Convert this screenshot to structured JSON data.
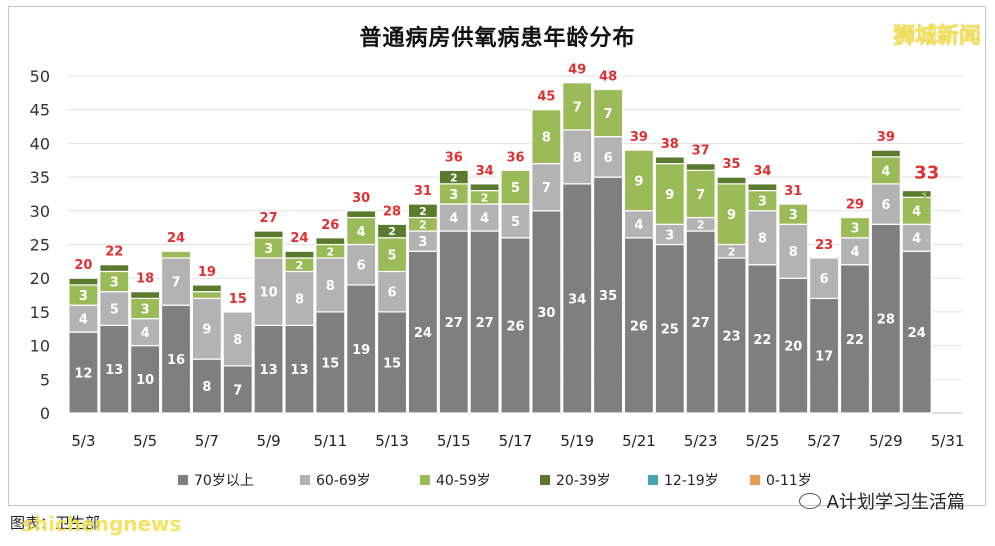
{
  "watermark_top_right": "狮城新闻",
  "watermark_bottom_right": "A计划学习生活篇",
  "watermark_bottom_left": "shichengnews",
  "source_note": "图表：卫生部",
  "colors": {
    "70+": "#7f7f7f",
    "60-69": "#b3b3b3",
    "40-59": "#9bbb59",
    "20-39": "#5a7a2e",
    "12-19": "#4aa3b5",
    "0-11": "#e89a52",
    "total_label": "#e03030"
  },
  "chart_data": {
    "type": "bar",
    "stacked": true,
    "title": "普通病房供氧病患年龄分布",
    "xlabel": "",
    "ylabel": "",
    "ylim": [
      0,
      50
    ],
    "yticks": [
      0,
      5,
      10,
      15,
      20,
      25,
      30,
      35,
      40,
      45,
      50
    ],
    "grid": true,
    "legend_position": "bottom",
    "categories": [
      "5/3",
      "5/4",
      "5/5",
      "5/6",
      "5/7",
      "5/8",
      "5/9",
      "5/10",
      "5/11",
      "5/12",
      "5/13",
      "5/14",
      "5/15",
      "5/16",
      "5/17",
      "5/18",
      "5/19",
      "5/20",
      "5/21",
      "5/22",
      "5/23",
      "5/24",
      "5/25",
      "5/26",
      "5/27",
      "5/28",
      "5/29",
      "5/30",
      "5/31"
    ],
    "xtick_labels": [
      "5/3",
      "",
      "5/5",
      "",
      "5/7",
      "",
      "5/9",
      "",
      "5/11",
      "",
      "5/13",
      "",
      "5/15",
      "",
      "5/17",
      "",
      "5/19",
      "",
      "5/21",
      "",
      "5/23",
      "",
      "5/25",
      "",
      "5/27",
      "",
      "5/29",
      "",
      "5/31"
    ],
    "series": [
      {
        "name": "70岁以上",
        "key": "70+",
        "values": [
          12,
          13,
          10,
          16,
          8,
          7,
          13,
          13,
          15,
          19,
          15,
          24,
          27,
          27,
          26,
          30,
          34,
          35,
          26,
          25,
          27,
          23,
          22,
          20,
          17,
          22,
          28,
          24,
          null
        ]
      },
      {
        "name": "60-69岁",
        "key": "60-69",
        "values": [
          4,
          5,
          4,
          7,
          9,
          8,
          10,
          8,
          8,
          6,
          6,
          3,
          4,
          4,
          5,
          7,
          8,
          6,
          4,
          3,
          2,
          2,
          8,
          8,
          6,
          4,
          6,
          4,
          null
        ]
      },
      {
        "name": "40-59岁",
        "key": "40-59",
        "values": [
          3,
          3,
          3,
          1,
          1,
          0,
          3,
          2,
          2,
          4,
          5,
          2,
          3,
          2,
          5,
          8,
          7,
          7,
          9,
          9,
          7,
          9,
          3,
          3,
          0,
          3,
          4,
          4,
          null
        ]
      },
      {
        "name": "20-39岁",
        "key": "20-39",
        "values": [
          1,
          1,
          1,
          0,
          1,
          0,
          1,
          1,
          1,
          1,
          2,
          2,
          2,
          1,
          0,
          0,
          0,
          0,
          0,
          1,
          1,
          1,
          1,
          0,
          0,
          0,
          1,
          1,
          null
        ]
      },
      {
        "name": "12-19岁",
        "key": "12-19",
        "values": [
          0,
          0,
          0,
          0,
          0,
          0,
          0,
          0,
          0,
          0,
          0,
          0,
          0,
          0,
          0,
          0,
          0,
          0,
          0,
          0,
          0,
          0,
          0,
          0,
          0,
          0,
          0,
          0,
          null
        ]
      },
      {
        "name": "0-11岁",
        "key": "0-11",
        "values": [
          0,
          0,
          0,
          0,
          0,
          0,
          0,
          0,
          0,
          0,
          0,
          0,
          0,
          0,
          0,
          0,
          0,
          0,
          0,
          0,
          0,
          0,
          0,
          0,
          0,
          0,
          0,
          0,
          null
        ]
      }
    ],
    "totals": [
      20,
      22,
      18,
      24,
      19,
      15,
      27,
      24,
      26,
      30,
      28,
      31,
      36,
      34,
      36,
      45,
      49,
      48,
      39,
      38,
      37,
      35,
      34,
      31,
      23,
      29,
      39,
      33,
      null
    ],
    "highlight_total_index": 27,
    "annotations": [
      {
        "category": "5/30",
        "text": "1"
      }
    ]
  }
}
